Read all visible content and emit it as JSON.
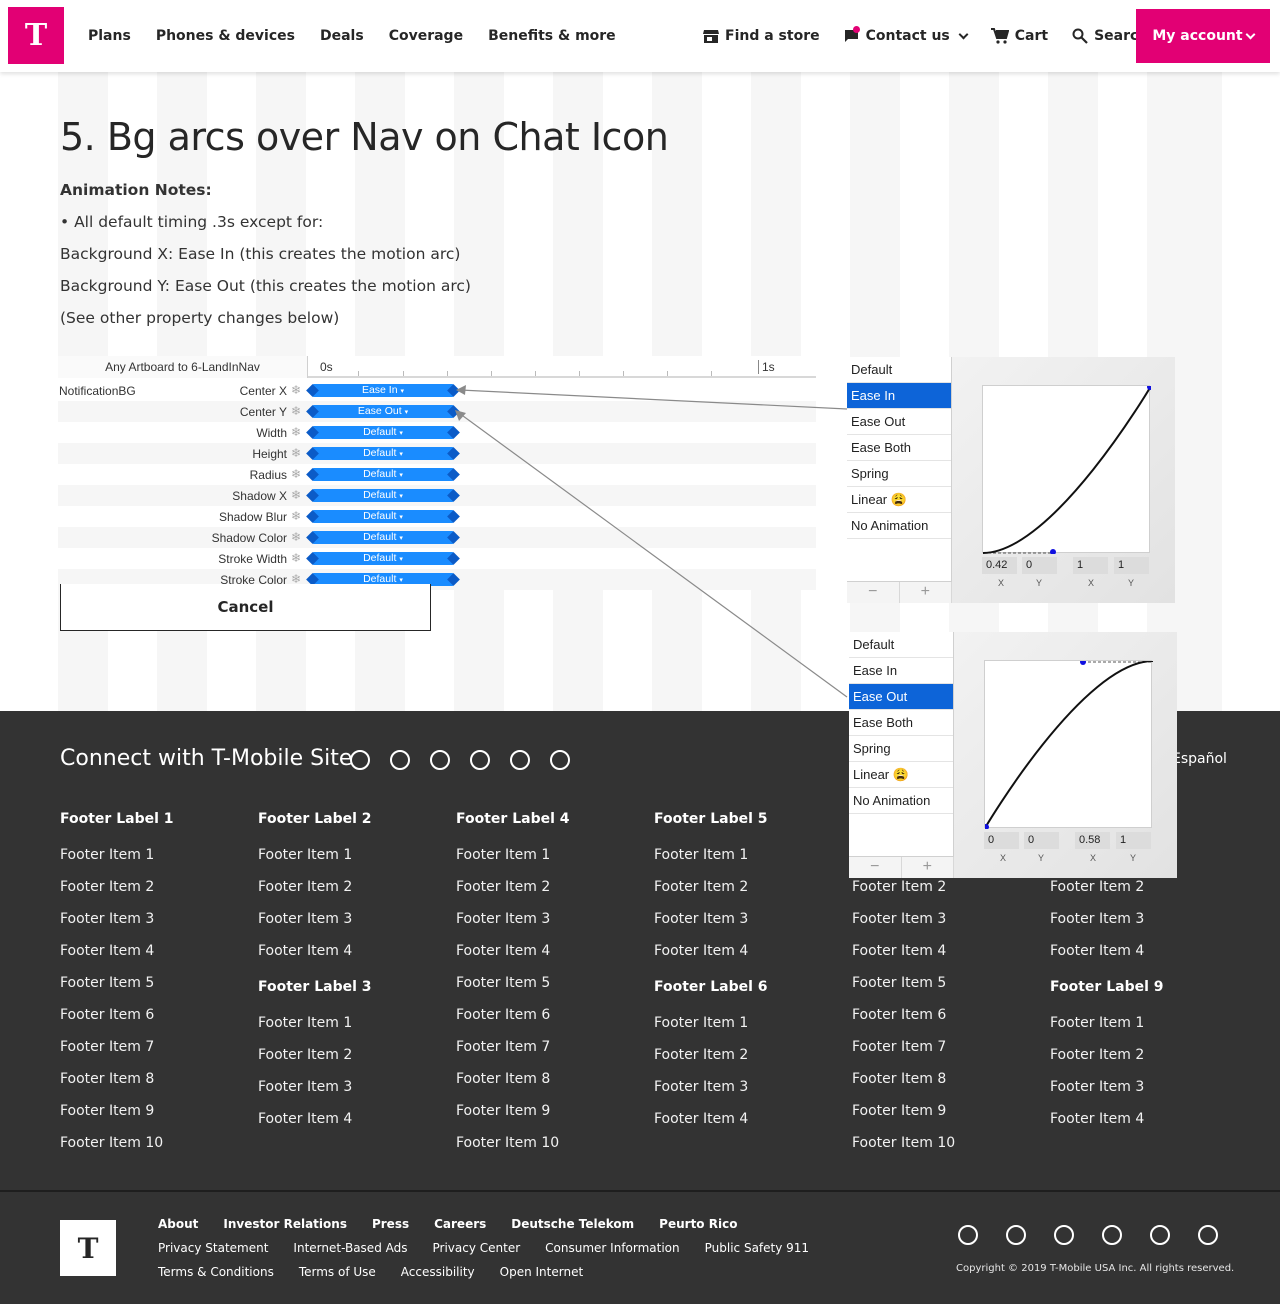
{
  "brand": {
    "logo_letter": "T",
    "accent": "#e20074"
  },
  "nav": {
    "left": [
      "Plans",
      "Phones & devices",
      "Deals",
      "Coverage",
      "Benefits & more"
    ],
    "find_store": "Find a store",
    "contact": "Contact us",
    "cart": "Cart",
    "search": "Search",
    "account": "My account"
  },
  "content": {
    "title": "5. Bg arcs over Nav on Chat Icon",
    "notes_heading": "Animation Notes:",
    "notes": [
      "• All default timing .3s except for:",
      "Background X: Ease In (this creates the motion arc)",
      "Background Y: Ease Out (this creates the motion arc)",
      "(See other property changes below)"
    ],
    "cancel": "Cancel"
  },
  "timeline": {
    "artboard": "Any Artboard to 6-LandInNav",
    "t0": "0s",
    "t1": "1s",
    "layer": "NotificationBG",
    "rows": [
      {
        "prop": "Center X",
        "curve": "Ease In"
      },
      {
        "prop": "Center Y",
        "curve": "Ease Out"
      },
      {
        "prop": "Width",
        "curve": "Default"
      },
      {
        "prop": "Height",
        "curve": "Default"
      },
      {
        "prop": "Radius",
        "curve": "Default"
      },
      {
        "prop": "Shadow X",
        "curve": "Default"
      },
      {
        "prop": "Shadow Blur",
        "curve": "Default"
      },
      {
        "prop": "Shadow Color",
        "curve": "Default"
      },
      {
        "prop": "Stroke Width",
        "curve": "Default"
      },
      {
        "prop": "Stroke Color",
        "curve": "Default"
      }
    ]
  },
  "easing_panels": [
    {
      "options": [
        "Default",
        "Ease In",
        "Ease Out",
        "Ease Both",
        "Spring",
        "Linear 😩",
        "No Animation"
      ],
      "selected": "Ease In",
      "values": [
        "0.42",
        "0",
        "1",
        "1"
      ],
      "labels": [
        "X",
        "Y",
        "X",
        "Y"
      ]
    },
    {
      "options": [
        "Default",
        "Ease In",
        "Ease Out",
        "Ease Both",
        "Spring",
        "Linear 😩",
        "No Animation"
      ],
      "selected": "Ease Out",
      "values": [
        "0",
        "0",
        "0.58",
        "1"
      ],
      "labels": [
        "X",
        "Y",
        "X",
        "Y"
      ]
    }
  ],
  "footer": {
    "connect": "Connect with T-Mobile Site",
    "espanol": "Español",
    "columns": [
      {
        "groups": [
          {
            "label": "Footer Label 1",
            "items": [
              "Footer Item 1",
              "Footer Item 2",
              "Footer Item 3",
              "Footer Item 4",
              "Footer Item 5",
              "Footer Item 6",
              "Footer Item 7",
              "Footer Item 8",
              "Footer Item 9",
              "Footer Item 10"
            ]
          }
        ]
      },
      {
        "groups": [
          {
            "label": "Footer Label 2",
            "items": [
              "Footer Item 1",
              "Footer Item 2",
              "Footer Item 3",
              "Footer Item 4"
            ]
          },
          {
            "label": "Footer Label 3",
            "items": [
              "Footer Item 1",
              "Footer Item 2",
              "Footer Item 3",
              "Footer Item 4"
            ]
          }
        ]
      },
      {
        "groups": [
          {
            "label": "Footer Label 4",
            "items": [
              "Footer Item 1",
              "Footer Item 2",
              "Footer Item 3",
              "Footer Item 4",
              "Footer Item 5",
              "Footer Item 6",
              "Footer Item 7",
              "Footer Item 8",
              "Footer Item 9",
              "Footer Item 10"
            ]
          }
        ]
      },
      {
        "groups": [
          {
            "label": "Footer Label 5",
            "items": [
              "Footer Item 1",
              "Footer Item 2",
              "Footer Item 3",
              "Footer Item 4"
            ]
          },
          {
            "label": "Footer Label 6",
            "items": [
              "Footer Item 1",
              "Footer Item 2",
              "Footer Item 3",
              "Footer Item 4"
            ]
          }
        ]
      },
      {
        "groups": [
          {
            "label": "",
            "items": [
              "Footer Item 2",
              "Footer Item 3",
              "Footer Item 4",
              "Footer Item 5",
              "Footer Item 6",
              "Footer Item 7",
              "Footer Item 8",
              "Footer Item 9",
              "Footer Item 10"
            ]
          }
        ]
      },
      {
        "groups": [
          {
            "label": "",
            "items": [
              "Footer Item 2",
              "Footer Item 3",
              "Footer Item 4"
            ]
          },
          {
            "label": "Footer Label 9",
            "items": [
              "Footer Item 1",
              "Footer Item 2",
              "Footer Item 3",
              "Footer Item 4"
            ]
          }
        ]
      }
    ],
    "bottom_primary": [
      "About",
      "Investor Relations",
      "Press",
      "Careers",
      "Deutsche Telekom",
      "Peurto Rico"
    ],
    "bottom_secondary": [
      "Privacy Statement",
      "Internet-Based Ads",
      "Privacy Center",
      "Consumer Information",
      "Public Safety 911"
    ],
    "bottom_tertiary": [
      "Terms & Conditions",
      "Terms of Use",
      "Accessibility",
      "Open Internet"
    ],
    "copyright": "Copyright © 2019 T-Mobile USA Inc. All rights reserved."
  }
}
